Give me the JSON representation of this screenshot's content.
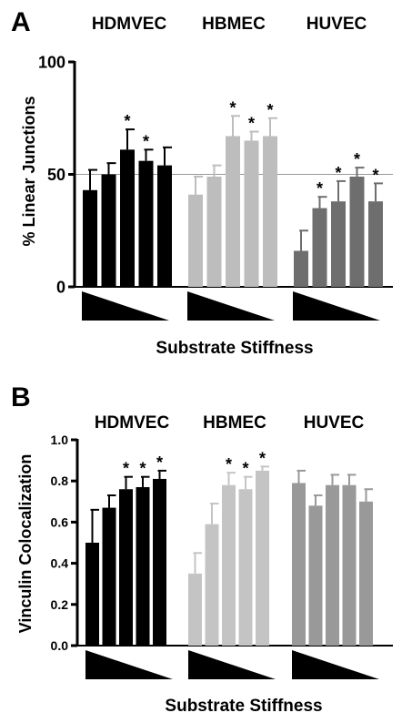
{
  "chart_data": [
    {
      "panel": "A",
      "type": "bar",
      "ylabel": "% Linear Junctions",
      "xlabel": "Substrate Stiffness",
      "ylim": [
        0,
        100
      ],
      "yticks": [
        "0",
        "50",
        "100"
      ],
      "reference_line": 50,
      "groups": [
        {
          "name": "HDMVEC",
          "color": "#000000",
          "values": [
            43,
            50,
            61,
            56,
            54
          ],
          "errors": [
            9,
            5,
            9,
            5,
            8
          ],
          "significant": [
            false,
            false,
            true,
            true,
            false
          ]
        },
        {
          "name": "HBMEC",
          "color": "#bdbdbd",
          "values": [
            41,
            49,
            67,
            65,
            67
          ],
          "errors": [
            8,
            5,
            9,
            4,
            8
          ],
          "significant": [
            false,
            false,
            true,
            true,
            true
          ]
        },
        {
          "name": "HUVEC",
          "color": "#6e6e6e",
          "values": [
            16,
            35,
            38,
            49,
            38
          ],
          "errors": [
            9,
            5,
            9,
            4,
            8
          ],
          "significant": [
            false,
            true,
            true,
            true,
            true
          ]
        }
      ]
    },
    {
      "panel": "B",
      "type": "bar",
      "ylabel": "Vinculin Colocalization",
      "xlabel": "Substrate Stiffness",
      "ylim": [
        0,
        1.0
      ],
      "yticks": [
        "0.0",
        "0.2",
        "0.4",
        "0.6",
        "0.8",
        "1.0"
      ],
      "groups": [
        {
          "name": "HDMVEC",
          "color": "#000000",
          "values": [
            0.5,
            0.67,
            0.76,
            0.77,
            0.81
          ],
          "errors": [
            0.16,
            0.06,
            0.06,
            0.05,
            0.04
          ],
          "significant": [
            false,
            false,
            true,
            true,
            true
          ]
        },
        {
          "name": "HBMEC",
          "color": "#c4c4c4",
          "values": [
            0.35,
            0.59,
            0.78,
            0.76,
            0.85
          ],
          "errors": [
            0.1,
            0.1,
            0.06,
            0.06,
            0.02
          ],
          "significant": [
            false,
            false,
            true,
            true,
            true
          ]
        },
        {
          "name": "HUVEC",
          "color": "#999999",
          "values": [
            0.79,
            0.68,
            0.78,
            0.78,
            0.7
          ],
          "errors": [
            0.06,
            0.05,
            0.05,
            0.05,
            0.06
          ],
          "significant": [
            false,
            false,
            false,
            false,
            false
          ]
        }
      ]
    }
  ]
}
